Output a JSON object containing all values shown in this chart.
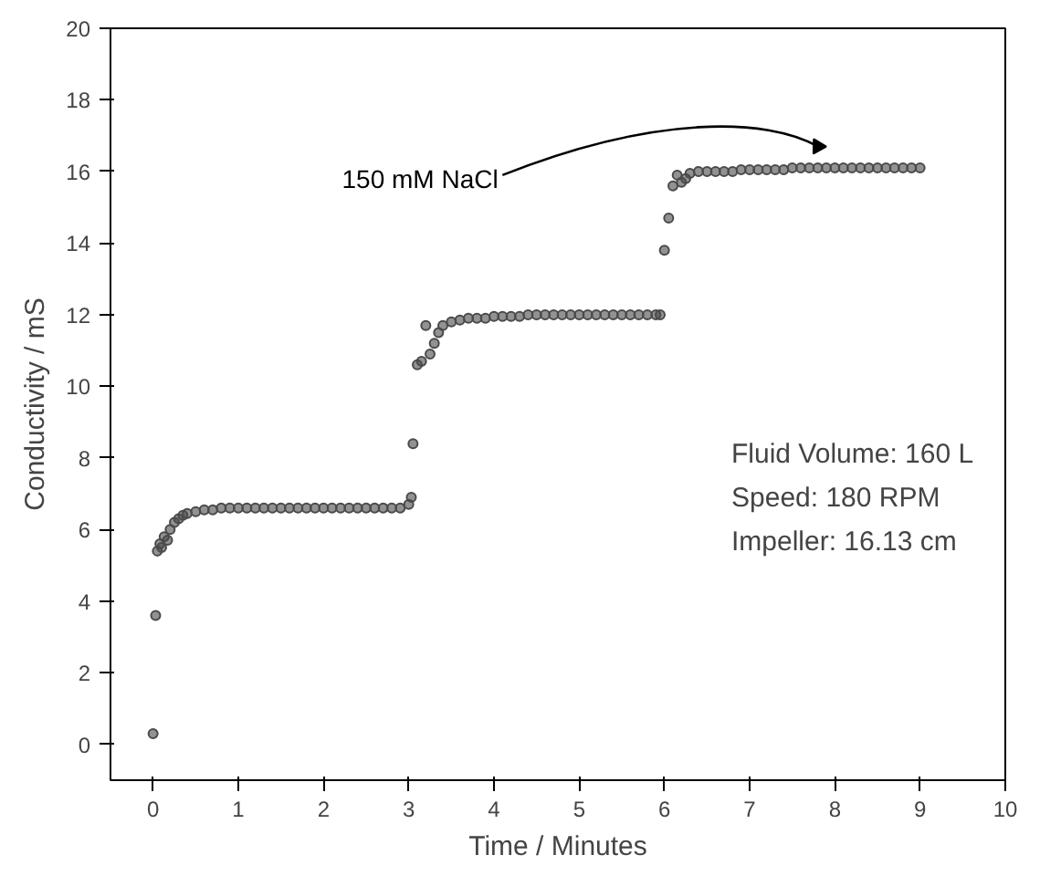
{
  "chart_data": {
    "type": "scatter",
    "xlabel": "Time / Minutes",
    "ylabel": "Conductivity / mS",
    "xlim": [
      -0.5,
      10
    ],
    "ylim": [
      -1,
      20
    ],
    "xticks": [
      0,
      1,
      2,
      3,
      4,
      5,
      6,
      7,
      8,
      9,
      10
    ],
    "yticks": [
      0,
      2,
      4,
      6,
      8,
      10,
      12,
      14,
      16,
      18,
      20
    ],
    "grid": false,
    "marker": "circle",
    "annotations": [
      {
        "text": "150 mM NaCl",
        "x": 7.8,
        "y": 16.7
      },
      "Fluid Volume: 160 L",
      "Speed: 180 RPM",
      "Impeller: 16.13 cm"
    ],
    "series": [
      {
        "color": "#4a4a4a",
        "x": [
          0.0,
          0.03,
          0.05,
          0.08,
          0.1,
          0.13,
          0.17,
          0.2,
          0.25,
          0.3,
          0.35,
          0.4,
          0.5,
          0.6,
          0.7,
          0.8,
          0.9,
          1.0,
          1.1,
          1.2,
          1.3,
          1.4,
          1.5,
          1.6,
          1.7,
          1.8,
          1.9,
          2.0,
          2.1,
          2.2,
          2.3,
          2.4,
          2.5,
          2.6,
          2.7,
          2.8,
          2.9,
          3.0,
          3.03,
          3.05,
          3.1,
          3.15,
          3.2,
          3.25,
          3.3,
          3.35,
          3.4,
          3.5,
          3.6,
          3.7,
          3.8,
          3.9,
          4.0,
          4.1,
          4.2,
          4.3,
          4.4,
          4.5,
          4.6,
          4.7,
          4.8,
          4.9,
          5.0,
          5.1,
          5.2,
          5.3,
          5.4,
          5.5,
          5.6,
          5.7,
          5.8,
          5.9,
          5.95,
          6.0,
          6.05,
          6.1,
          6.15,
          6.2,
          6.25,
          6.3,
          6.4,
          6.5,
          6.6,
          6.7,
          6.8,
          6.9,
          7.0,
          7.1,
          7.2,
          7.3,
          7.4,
          7.5,
          7.6,
          7.7,
          7.8,
          7.9,
          8.0,
          8.1,
          8.2,
          8.3,
          8.4,
          8.5,
          8.6,
          8.7,
          8.8,
          8.9,
          9.0
        ],
        "values": [
          0.3,
          3.6,
          5.4,
          5.6,
          5.5,
          5.8,
          5.7,
          6.0,
          6.2,
          6.3,
          6.4,
          6.45,
          6.5,
          6.55,
          6.55,
          6.6,
          6.6,
          6.6,
          6.6,
          6.6,
          6.6,
          6.6,
          6.6,
          6.6,
          6.6,
          6.6,
          6.6,
          6.6,
          6.6,
          6.6,
          6.6,
          6.6,
          6.6,
          6.6,
          6.6,
          6.6,
          6.6,
          6.7,
          6.9,
          8.4,
          10.6,
          10.7,
          11.7,
          10.9,
          11.2,
          11.5,
          11.7,
          11.8,
          11.85,
          11.9,
          11.9,
          11.9,
          11.95,
          11.95,
          11.95,
          11.95,
          12.0,
          12.0,
          12.0,
          12.0,
          12.0,
          12.0,
          12.0,
          12.0,
          12.0,
          12.0,
          12.0,
          12.0,
          12.0,
          12.0,
          12.0,
          12.0,
          12.0,
          13.8,
          14.7,
          15.6,
          15.9,
          15.7,
          15.8,
          15.95,
          16.0,
          16.0,
          16.0,
          16.0,
          16.0,
          16.05,
          16.05,
          16.05,
          16.05,
          16.05,
          16.05,
          16.1,
          16.1,
          16.1,
          16.1,
          16.1,
          16.1,
          16.1,
          16.1,
          16.1,
          16.1,
          16.1,
          16.1,
          16.1,
          16.1,
          16.1,
          16.1
        ]
      }
    ]
  }
}
